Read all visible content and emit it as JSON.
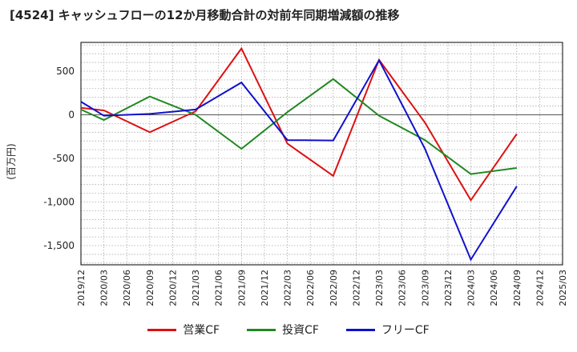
{
  "colors": {
    "operating_cf": "#dd1111",
    "investing_cf": "#228822",
    "free_cf": "#1111cc",
    "grid": "#aaaaaa",
    "axis": "#000000"
  },
  "chart_data": {
    "type": "line",
    "title": "[4524]  キャッシュフローの12か月移動合計の対前年同期増減額の推移",
    "ylabel": "(百万円)",
    "xlabel": "",
    "ylim": [
      -1720,
      830
    ],
    "yticks": [
      500,
      0,
      -500,
      -1000,
      -1500
    ],
    "ytick_labels": [
      "500",
      "0",
      "-500",
      "-1,000",
      "-1,500"
    ],
    "x_ticks": [
      "2019/12",
      "2020/03",
      "2020/06",
      "2020/09",
      "2020/12",
      "2021/03",
      "2021/06",
      "2021/09",
      "2021/12",
      "2022/03",
      "2022/06",
      "2022/09",
      "2022/12",
      "2023/03",
      "2023/06",
      "2023/09",
      "2023/12",
      "2024/03",
      "2024/06",
      "2024/09",
      "2024/12",
      "2025/03"
    ],
    "grid": true,
    "legend_position": "bottom",
    "series": [
      {
        "name": "営業CF",
        "color_key": "operating_cf",
        "points": [
          [
            "2019/12",
            80
          ],
          [
            "2020/03",
            50
          ],
          [
            "2020/09",
            -200
          ],
          [
            "2021/03",
            40
          ],
          [
            "2021/09",
            760
          ],
          [
            "2022/03",
            -330
          ],
          [
            "2022/09",
            -700
          ],
          [
            "2023/03",
            630
          ],
          [
            "2023/09",
            -90
          ],
          [
            "2024/03",
            -980
          ],
          [
            "2024/09",
            -220
          ]
        ]
      },
      {
        "name": "投資CF",
        "color_key": "investing_cf",
        "points": [
          [
            "2019/12",
            60
          ],
          [
            "2020/03",
            -60
          ],
          [
            "2020/09",
            210
          ],
          [
            "2021/03",
            0
          ],
          [
            "2021/09",
            -390
          ],
          [
            "2022/03",
            30
          ],
          [
            "2022/09",
            410
          ],
          [
            "2023/03",
            -10
          ],
          [
            "2023/09",
            -290
          ],
          [
            "2024/03",
            -680
          ],
          [
            "2024/09",
            -610
          ]
        ]
      },
      {
        "name": "フリーCF",
        "color_key": "free_cf",
        "points": [
          [
            "2019/12",
            150
          ],
          [
            "2020/03",
            -10
          ],
          [
            "2020/09",
            10
          ],
          [
            "2021/03",
            60
          ],
          [
            "2021/09",
            370
          ],
          [
            "2022/03",
            -290
          ],
          [
            "2022/09",
            -295
          ],
          [
            "2023/03",
            625
          ],
          [
            "2023/09",
            -390
          ],
          [
            "2024/03",
            -1660
          ],
          [
            "2024/09",
            -820
          ]
        ]
      }
    ]
  }
}
